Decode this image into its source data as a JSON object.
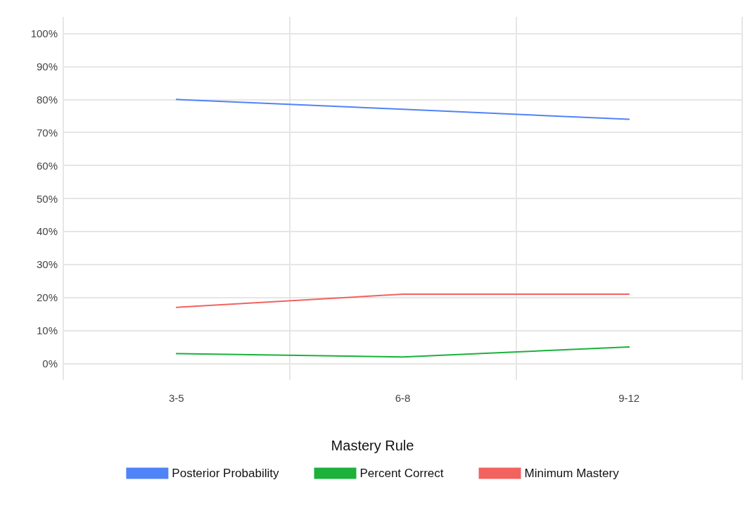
{
  "chart_data": {
    "type": "line",
    "categories": [
      "3-5",
      "6-8",
      "9-12"
    ],
    "series": [
      {
        "name": "Posterior Probability",
        "color": "#5083f7",
        "values": [
          80,
          77,
          74
        ]
      },
      {
        "name": "Percent Correct",
        "color": "#1bb13b",
        "values": [
          3,
          2,
          5
        ]
      },
      {
        "name": "Minimum Mastery",
        "color": "#f2625e",
        "values": [
          17,
          21,
          21
        ]
      }
    ],
    "ylim": [
      -5,
      105
    ],
    "yticks": [
      {
        "value": 0,
        "label": "0%"
      },
      {
        "value": 10,
        "label": "10%"
      },
      {
        "value": 20,
        "label": "20%"
      },
      {
        "value": 30,
        "label": "30%"
      },
      {
        "value": 40,
        "label": "40%"
      },
      {
        "value": 50,
        "label": "50%"
      },
      {
        "value": 60,
        "label": "60%"
      },
      {
        "value": 70,
        "label": "70%"
      },
      {
        "value": 80,
        "label": "80%"
      },
      {
        "value": 90,
        "label": "90%"
      },
      {
        "value": 100,
        "label": "100%"
      }
    ],
    "grid": true,
    "legend": "bottom",
    "legend_title": "Mastery Rule",
    "marker": "none",
    "line_style": "solid"
  }
}
